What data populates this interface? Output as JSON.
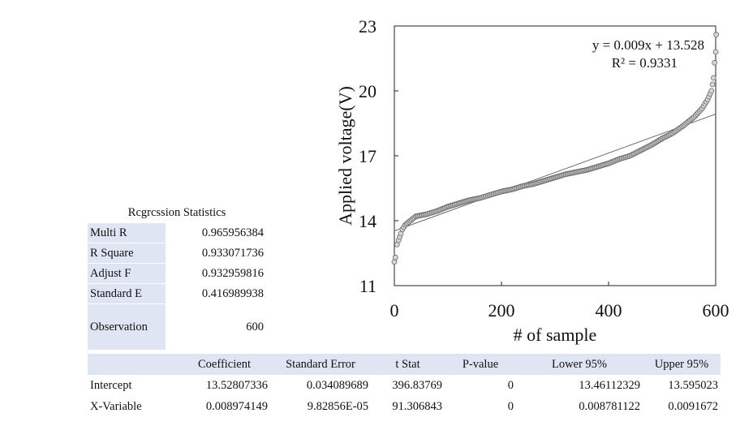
{
  "chart_data": {
    "type": "scatter",
    "xlabel": "# of sample",
    "ylabel": "Applied voltage(V)",
    "xlim": [
      0,
      600
    ],
    "ylim": [
      11,
      23
    ],
    "xticks": [
      "0",
      "200",
      "400",
      "600"
    ],
    "yticks": [
      "11",
      "14",
      "17",
      "20",
      "23"
    ],
    "trendline": {
      "slope": 0.009,
      "intercept": 13.528,
      "equation": "y = 0.009x + 13.528",
      "r2": "R² = 0.9331"
    },
    "series": [
      {
        "name": "Applied voltage",
        "points": [
          [
            0,
            12.1
          ],
          [
            2,
            12.3
          ],
          [
            5,
            12.9
          ],
          [
            8,
            13.1
          ],
          [
            12,
            13.4
          ],
          [
            15,
            13.6
          ],
          [
            20,
            13.8
          ],
          [
            30,
            14.0
          ],
          [
            40,
            14.2
          ],
          [
            60,
            14.3
          ],
          [
            80,
            14.45
          ],
          [
            100,
            14.65
          ],
          [
            120,
            14.8
          ],
          [
            140,
            14.95
          ],
          [
            160,
            15.05
          ],
          [
            180,
            15.2
          ],
          [
            200,
            15.35
          ],
          [
            220,
            15.45
          ],
          [
            240,
            15.6
          ],
          [
            260,
            15.7
          ],
          [
            280,
            15.85
          ],
          [
            300,
            16.0
          ],
          [
            320,
            16.15
          ],
          [
            340,
            16.25
          ],
          [
            360,
            16.35
          ],
          [
            380,
            16.5
          ],
          [
            400,
            16.65
          ],
          [
            420,
            16.85
          ],
          [
            440,
            17.0
          ],
          [
            460,
            17.25
          ],
          [
            480,
            17.5
          ],
          [
            500,
            17.8
          ],
          [
            520,
            18.05
          ],
          [
            540,
            18.4
          ],
          [
            560,
            18.8
          ],
          [
            575,
            19.2
          ],
          [
            585,
            19.6
          ],
          [
            592,
            20.0
          ],
          [
            596,
            20.6
          ],
          [
            598,
            21.3
          ],
          [
            600,
            21.8
          ],
          [
            601,
            22.6
          ]
        ]
      }
    ]
  },
  "regression_stats": {
    "title": "Rcgrcssion Statistics",
    "rows": [
      {
        "label": "Multi R",
        "value": "0.965956384"
      },
      {
        "label": "R Square",
        "value": "0.933071736"
      },
      {
        "label": "Adjust F",
        "value": "0.932959816"
      },
      {
        "label": "Standard E",
        "value": "0.416989938"
      },
      {
        "label": "Observation",
        "value": "600"
      }
    ]
  },
  "coefficients": {
    "headers": [
      "Coefficient",
      "Standard Error",
      "t Stat",
      "P-value",
      "Lower 95%",
      "Upper 95%"
    ],
    "rows": [
      {
        "label": "Intercept",
        "values": [
          "13.52807336",
          "0.034089689",
          "396.83769",
          "0",
          "13.46112329",
          "13.595023"
        ]
      },
      {
        "label": "X-Variable",
        "values": [
          "0.008974149",
          "9.82856E-05",
          "91.306843",
          "0",
          "0.008781122",
          "0.0091672"
        ]
      }
    ]
  }
}
